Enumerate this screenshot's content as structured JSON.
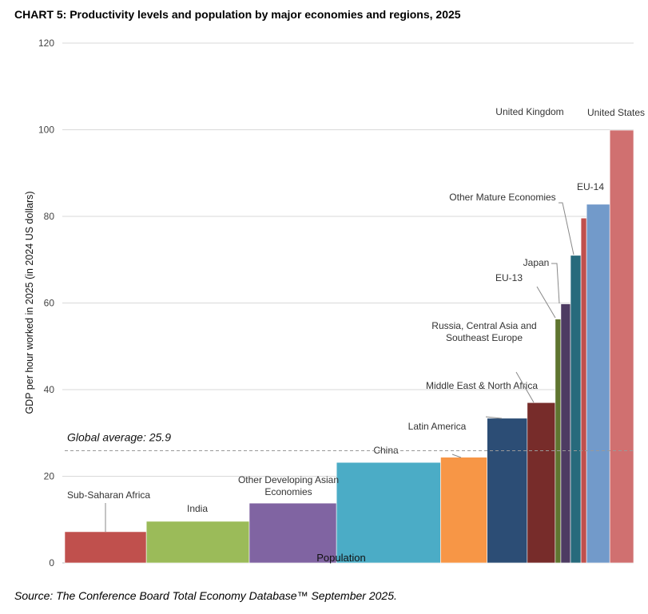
{
  "chart_data": {
    "type": "bar",
    "title": "CHART 5: Productivity levels and population by major economies and regions, 2025",
    "source": "Source: The Conference Board Total Economy Database™ September 2025.",
    "ylabel": "GDP per hour worked in 2025 (in 2024 US dollars)",
    "xlabel": "Population",
    "ylim": [
      0,
      120
    ],
    "yticks": [
      0,
      20,
      40,
      60,
      80,
      100,
      120
    ],
    "grid": true,
    "global_average": {
      "label": "Global average: 25.9",
      "value": 25.9
    },
    "categories": [
      "Sub-Saharan Africa",
      "India",
      "Other Developing Asian Economies",
      "China",
      "Latin America",
      "Middle East & North Africa",
      "Russia, Central Asia and Southeast Europe",
      "EU-13",
      "Japan",
      "Other Mature Economies",
      "United Kingdom",
      "EU-14",
      "United States"
    ],
    "values": [
      7.2,
      9.6,
      13.8,
      23.2,
      24.4,
      33.4,
      37.0,
      56.3,
      59.8,
      71.0,
      79.6,
      82.8,
      99.9
    ],
    "population_share": [
      0.1463,
      0.1845,
      0.1563,
      0.1866,
      0.0833,
      0.0719,
      0.0502,
      0.0101,
      0.0173,
      0.0187,
      0.0101,
      0.0416,
      0.0427
    ],
    "colors": [
      "#c0504d",
      "#9bbb59",
      "#8064a2",
      "#4bacc6",
      "#f79646",
      "#2c4d75",
      "#772c2a",
      "#5f7530",
      "#4d3b62",
      "#276a7c",
      "#c0504d",
      "#729aca",
      "#d07070"
    ]
  }
}
